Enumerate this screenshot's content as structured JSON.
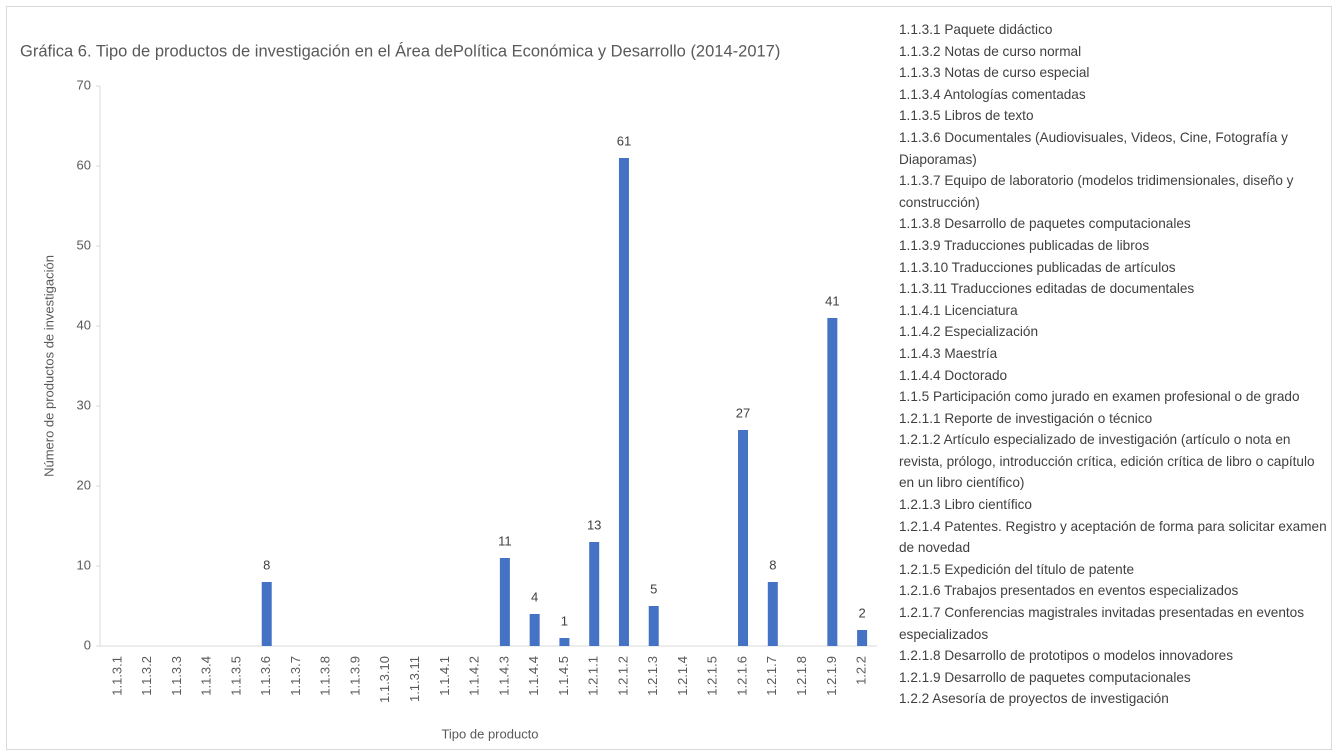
{
  "chart_data": {
    "type": "bar",
    "title": "Gráfica 6. Tipo de productos de investigación en el Área dePolítica Económica y Desarrollo (2014-2017)",
    "x_label": "Tipo de producto",
    "y_label": "Número de productos de investigación",
    "categories": [
      "1.1.3.1",
      "1.1.3.2",
      "1.1.3.3",
      "1.1.3.4",
      "1.1.3.5",
      "1.1.3.6",
      "1.1.3.7",
      "1.1.3.8",
      "1.1.3.9",
      "1.1.3.10",
      "1.1.3.11",
      "1.1.4.1",
      "1.1.4.2",
      "1.1.4.3",
      "1.1.4.4",
      "1.1.4.5",
      "1.2.1.1",
      "1.2.1.2",
      "1.2.1.3",
      "1.2.1.4",
      "1.2.1.5",
      "1.2.1.6",
      "1.2.1.7",
      "1.2.1.8",
      "1.2.1.9",
      "1.2.2"
    ],
    "values": [
      0,
      0,
      0,
      0,
      0,
      8,
      0,
      0,
      0,
      0,
      0,
      0,
      0,
      11,
      4,
      1,
      13,
      61,
      5,
      0,
      0,
      27,
      8,
      0,
      41,
      2
    ],
    "color": "#4472c4",
    "ylim": [
      0,
      70
    ],
    "yticks": [
      0,
      10,
      20,
      30,
      40,
      50,
      60,
      70
    ],
    "grid": false,
    "notes": [
      "1.1.3.1 Paquete didáctico",
      "1.1.3.2 Notas de curso normal",
      "1.1.3.3 Notas de curso especial",
      "1.1.3.4 Antologías comentadas",
      "1.1.3.5 Libros de texto",
      "1.1.3.6 Documentales (Audiovisuales, Videos, Cine, Fotografía y Diaporamas)",
      "1.1.3.7 Equipo de laboratorio (modelos tridimensionales, diseño y construcción)",
      "1.1.3.8 Desarrollo de paquetes computacionales",
      "1.1.3.9 Traducciones publicadas de libros",
      "1.1.3.10 Traducciones publicadas de artículos",
      "1.1.3.11 Traducciones editadas de documentales",
      "1.1.4.1 Licenciatura",
      "1.1.4.2 Especialización",
      "1.1.4.3 Maestría",
      "1.1.4.4 Doctorado",
      "1.1.5 Participación como jurado en examen profesional o de grado",
      "1.2.1.1 Reporte de investigación o técnico",
      "1.2.1.2 Artículo especializado de investigación (artículo o nota en revista, prólogo, introducción crítica, edición crítica de libro o capítulo en un libro científico)",
      "1.2.1.3 Libro científico",
      "1.2.1.4 Patentes. Registro y aceptación de forma para solicitar examen de novedad",
      "1.2.1.5 Expedición del título de patente",
      "1.2.1.6 Trabajos presentados en eventos especializados",
      "1.2.1.7 Conferencias magistrales invitadas presentadas en eventos especializados",
      "1.2.1.8 Desarrollo de prototipos o modelos innovadores",
      "1.2.1.9 Desarrollo de paquetes computacionales",
      "1.2.2 Asesoría de proyectos de investigación"
    ]
  }
}
